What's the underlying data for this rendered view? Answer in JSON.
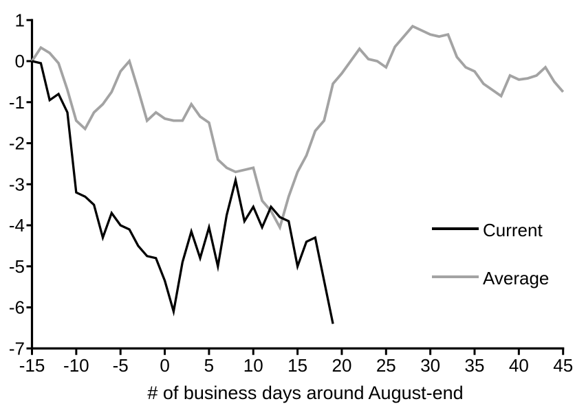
{
  "chart_data": {
    "type": "line",
    "xlabel": "# of business days around August-end",
    "xlim": [
      -15,
      45
    ],
    "ylim": [
      -7,
      1
    ],
    "x_ticks": [
      -15,
      -10,
      -5,
      0,
      5,
      10,
      15,
      20,
      25,
      30,
      35,
      40,
      45
    ],
    "y_ticks": [
      1,
      0,
      -1,
      -2,
      -3,
      -4,
      -5,
      -6,
      -7
    ],
    "grid": false,
    "legend_position": "right-middle",
    "x_start": -15,
    "x_step": 1,
    "series": [
      {
        "name": "Current",
        "color": "#000000",
        "stroke_width": 3.3,
        "values": [
          0,
          -0.05,
          -0.95,
          -0.8,
          -1.25,
          -3.2,
          -3.3,
          -3.5,
          -4.3,
          -3.7,
          -4.0,
          -4.1,
          -4.5,
          -4.75,
          -4.8,
          -5.35,
          -6.1,
          -4.9,
          -4.15,
          -4.8,
          -4.05,
          -5.0,
          -3.75,
          -2.9,
          -3.9,
          -3.55,
          -4.05,
          -3.55,
          -3.8,
          -3.9,
          -5.0,
          -4.4,
          -4.3,
          -5.35,
          -6.4
        ]
      },
      {
        "name": "Average",
        "color": "#a3a3a3",
        "stroke_width": 3.8,
        "values": [
          0,
          0.33,
          0.2,
          -0.05,
          -0.7,
          -1.45,
          -1.65,
          -1.25,
          -1.05,
          -0.75,
          -0.25,
          0,
          -0.7,
          -1.45,
          -1.25,
          -1.4,
          -1.45,
          -1.45,
          -1.05,
          -1.35,
          -1.5,
          -2.4,
          -2.6,
          -2.7,
          -2.65,
          -2.6,
          -3.4,
          -3.65,
          -4.05,
          -3.3,
          -2.7,
          -2.3,
          -1.7,
          -1.45,
          -0.55,
          -0.3,
          0,
          0.3,
          0.05,
          0,
          -0.15,
          0.35,
          0.6,
          0.85,
          0.75,
          0.65,
          0.6,
          0.65,
          0.1,
          -0.15,
          -0.25,
          -0.55,
          -0.7,
          -0.85,
          -0.35,
          -0.45,
          -0.42,
          -0.35,
          -0.15,
          -0.5,
          -0.75
        ]
      }
    ],
    "axis_color": "#000000",
    "tick_font_size": 26
  }
}
